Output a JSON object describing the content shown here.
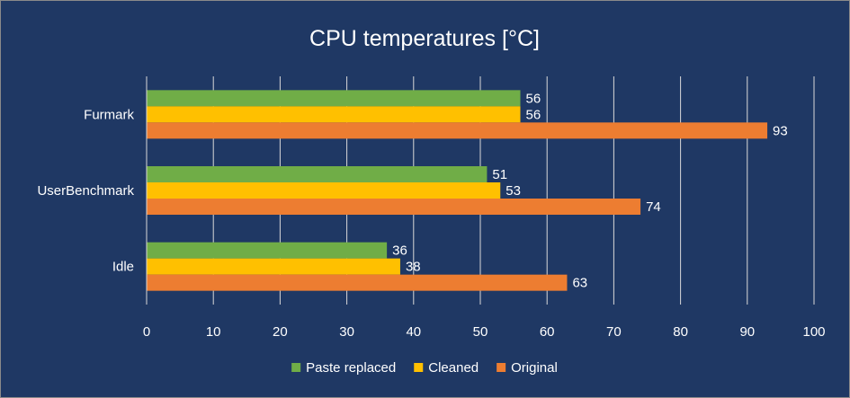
{
  "chart_data": {
    "type": "bar",
    "orientation": "horizontal",
    "title": "CPU temperatures [°C]",
    "xlabel": "",
    "ylabel": "",
    "categories": [
      "Furmark",
      "UserBenchmark",
      "Idle"
    ],
    "series": [
      {
        "name": "Paste replaced",
        "color": "#70ad47",
        "values": [
          56,
          51,
          36
        ]
      },
      {
        "name": "Cleaned",
        "color": "#ffc000",
        "values": [
          56,
          53,
          38
        ]
      },
      {
        "name": "Original",
        "color": "#ed7d31",
        "values": [
          93,
          74,
          63
        ]
      }
    ],
    "xlim": [
      0,
      100
    ],
    "ticks": [
      0,
      10,
      20,
      30,
      40,
      50,
      60,
      70,
      80,
      90,
      100
    ],
    "grid": "vertical",
    "legend": "bottom",
    "data_labels": true
  },
  "colors": {
    "background": "#1f3864",
    "text": "#ffffff",
    "grid": "#d9d9d9"
  }
}
